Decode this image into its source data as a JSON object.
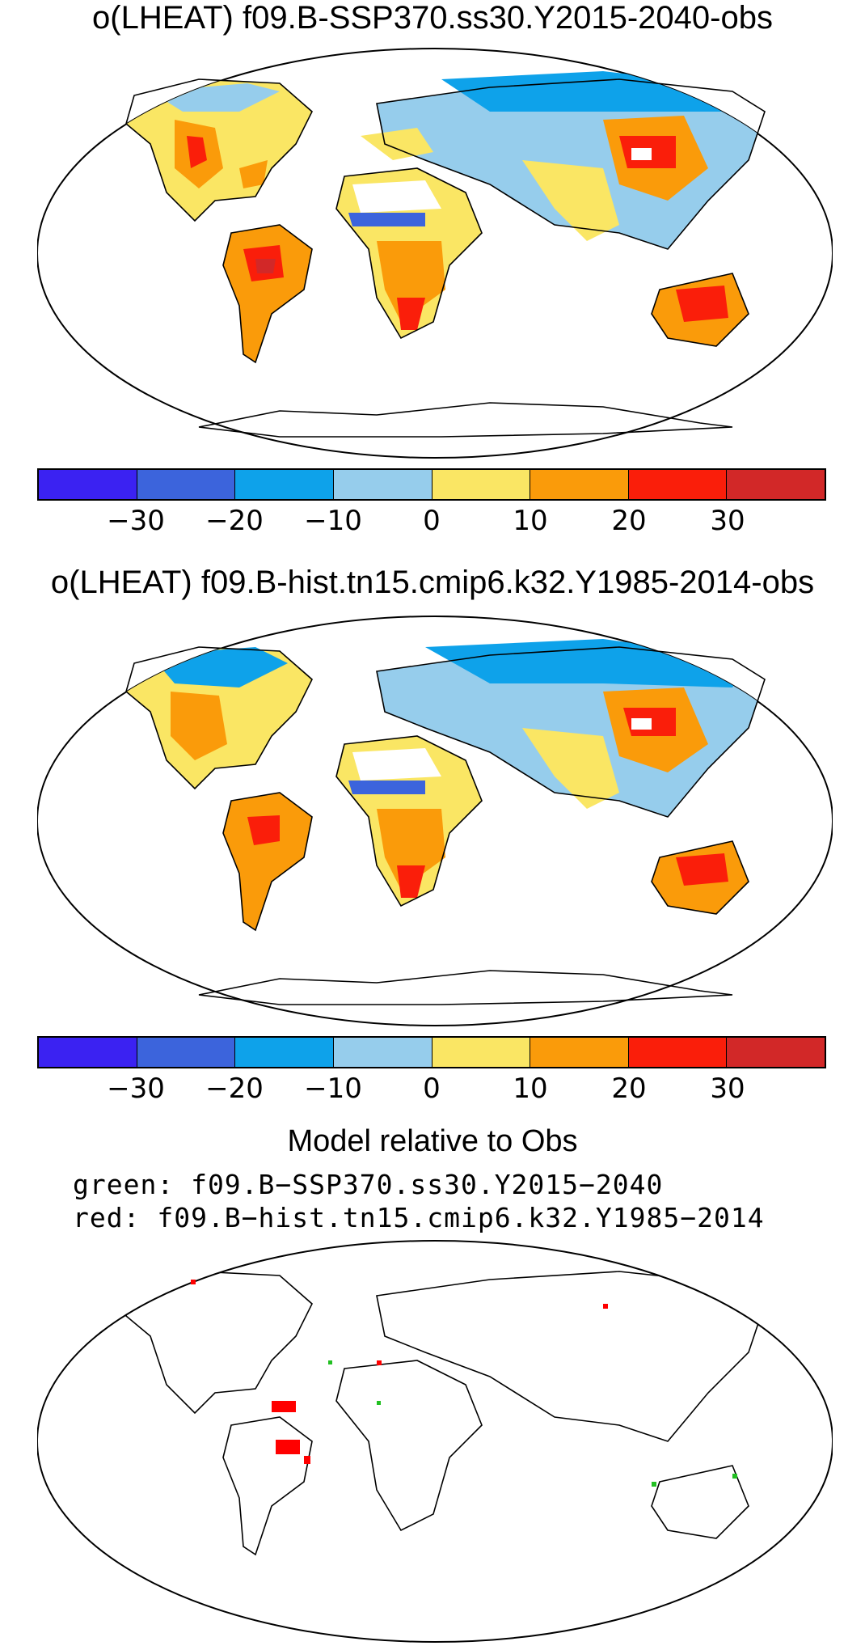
{
  "panels": [
    {
      "title": "o(LHEAT) f09.B-SSP370.ss30.Y2015-2040-obs"
    },
    {
      "title": "o(LHEAT) f09.B-hist.tn15.cmip6.k32.Y1985-2014-obs"
    }
  ],
  "colorbar": {
    "colors": [
      "#3b22f2",
      "#3c64dc",
      "#0ea2ea",
      "#96cdec",
      "#fae664",
      "#fa9b0a",
      "#fa1e0a",
      "#d22828"
    ],
    "tick_labels": [
      "−30",
      "−20",
      "−10",
      "0",
      "10",
      "20",
      "30"
    ]
  },
  "comparison": {
    "title": "Model relative to Obs",
    "legend_green": "green: f09.B−SSP370.ss30.Y2015−2040",
    "legend_red": "red: f09.B−hist.tn15.cmip6.k32.Y1985−2014",
    "green_color": "#22c022",
    "red_color": "#ff0000"
  }
}
